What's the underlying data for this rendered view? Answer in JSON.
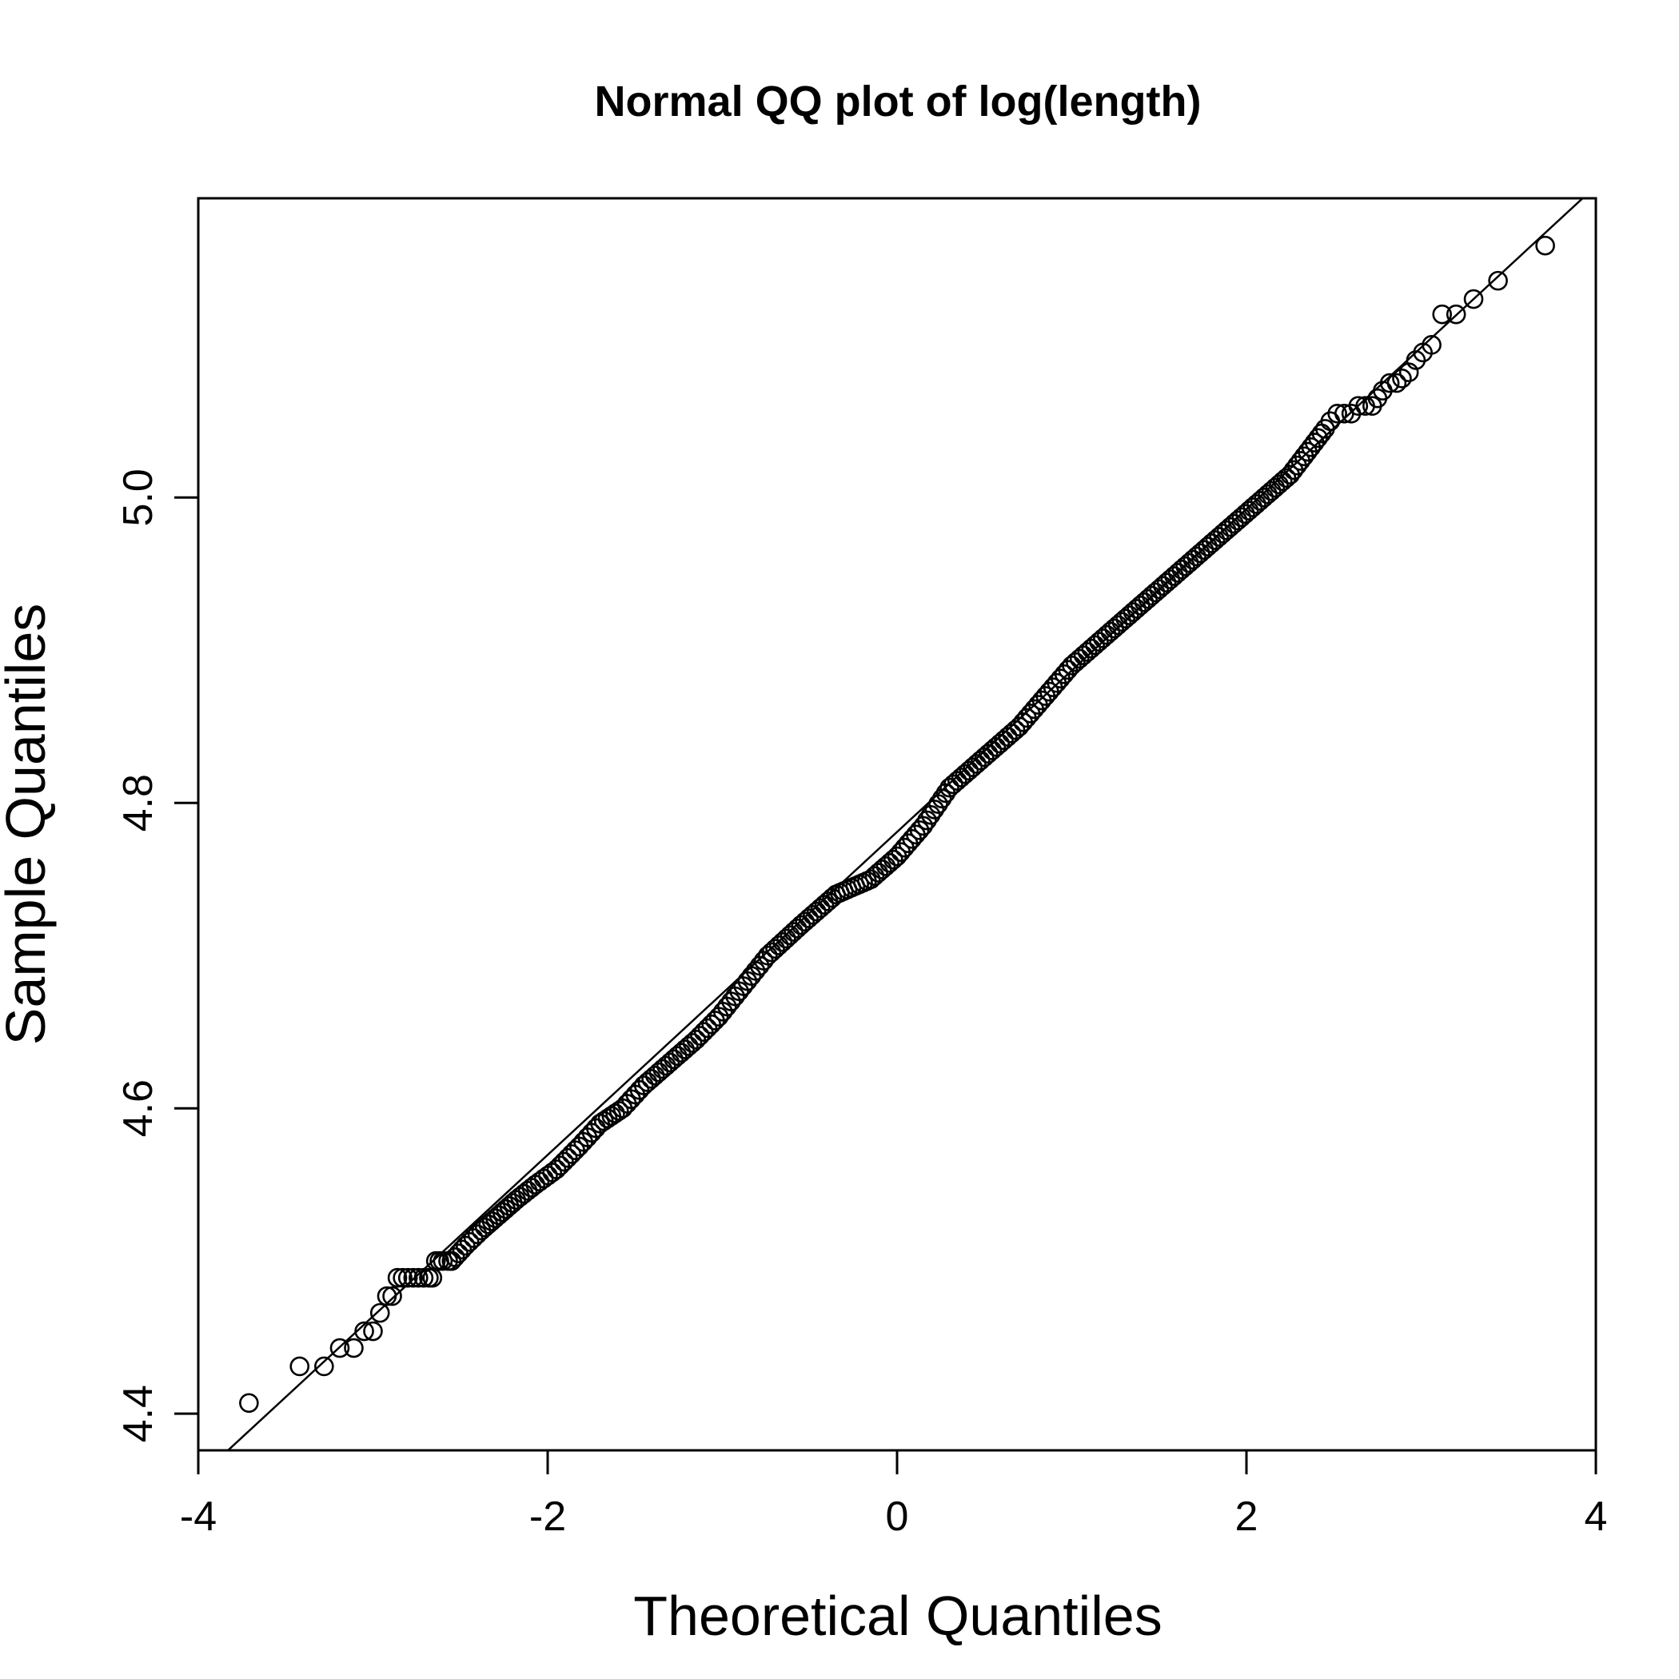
{
  "chart_data": {
    "type": "scatter",
    "title": "Normal QQ plot of log(length)",
    "xlabel": "Theoretical Quantiles",
    "ylabel": "Sample Quantiles",
    "xlim": [
      -4,
      4
    ],
    "ylim": [
      4.376,
      5.196
    ],
    "xticks": [
      "-4",
      "-2",
      "0",
      "2",
      "4"
    ],
    "yticks": [
      "4.4",
      "4.6",
      "4.8",
      "5.0"
    ],
    "reference_line": {
      "x": [
        -4,
        4
      ],
      "y": [
        4.358,
        5.204
      ]
    },
    "series": [
      {
        "points": [
          [
            -3.71,
            4.407
          ],
          [
            -3.42,
            4.431
          ],
          [
            -3.28,
            4.431
          ],
          [
            -3.19,
            4.443
          ],
          [
            -3.11,
            4.443
          ],
          [
            -3.05,
            4.454
          ],
          [
            -3.0,
            4.454
          ],
          [
            -2.96,
            4.466
          ],
          [
            -2.92,
            4.477
          ],
          [
            -2.89,
            4.477
          ],
          [
            -2.86,
            4.489
          ],
          [
            -2.83,
            4.489
          ],
          [
            -2.8,
            4.489
          ],
          [
            -2.77,
            4.489
          ],
          [
            -2.74,
            4.489
          ],
          [
            -2.71,
            4.489
          ],
          [
            -2.68,
            4.489
          ],
          [
            -2.66,
            4.489
          ],
          [
            -2.64,
            4.5
          ],
          [
            -2.62,
            4.5
          ],
          [
            -2.6,
            4.5
          ],
          [
            -2.57,
            4.5
          ],
          [
            -2.55,
            4.5
          ],
          [
            2.45,
            5.045
          ],
          [
            2.48,
            5.05
          ],
          [
            2.52,
            5.055
          ],
          [
            2.56,
            5.055
          ],
          [
            2.6,
            5.055
          ],
          [
            2.64,
            5.06
          ],
          [
            2.68,
            5.06
          ],
          [
            2.72,
            5.06
          ],
          [
            2.75,
            5.065
          ],
          [
            2.78,
            5.07
          ],
          [
            2.82,
            5.075
          ],
          [
            2.86,
            5.075
          ],
          [
            2.89,
            5.078
          ],
          [
            2.93,
            5.082
          ],
          [
            2.97,
            5.09
          ],
          [
            3.01,
            5.095
          ],
          [
            3.06,
            5.1
          ],
          [
            3.12,
            5.12
          ],
          [
            3.2,
            5.12
          ],
          [
            3.3,
            5.13
          ],
          [
            3.44,
            5.142
          ],
          [
            3.71,
            5.165
          ]
        ]
      }
    ],
    "dense_band": [
      [
        -2.55,
        4.5
      ],
      [
        -2.47,
        4.51
      ],
      [
        -2.38,
        4.52
      ],
      [
        -2.28,
        4.53
      ],
      [
        -2.18,
        4.54
      ],
      [
        -2.07,
        4.55
      ],
      [
        -1.95,
        4.56
      ],
      [
        -1.82,
        4.575
      ],
      [
        -1.7,
        4.59
      ],
      [
        -1.57,
        4.6
      ],
      [
        -1.45,
        4.615
      ],
      [
        -1.3,
        4.63
      ],
      [
        -1.15,
        4.645
      ],
      [
        -1.02,
        4.66
      ],
      [
        -0.88,
        4.68
      ],
      [
        -0.74,
        4.7
      ],
      [
        -0.55,
        4.72
      ],
      [
        -0.35,
        4.74
      ],
      [
        -0.15,
        4.75
      ],
      [
        0.0,
        4.765
      ],
      [
        0.15,
        4.785
      ],
      [
        0.3,
        4.81
      ],
      [
        0.5,
        4.83
      ],
      [
        0.7,
        4.85
      ],
      [
        0.85,
        4.87
      ],
      [
        1.0,
        4.89
      ],
      [
        1.2,
        4.91
      ],
      [
        1.35,
        4.925
      ],
      [
        1.5,
        4.94
      ],
      [
        1.65,
        4.955
      ],
      [
        1.8,
        4.97
      ],
      [
        1.95,
        4.985
      ],
      [
        2.1,
        5.0
      ],
      [
        2.25,
        5.015
      ],
      [
        2.35,
        5.03
      ],
      [
        2.45,
        5.045
      ]
    ]
  }
}
